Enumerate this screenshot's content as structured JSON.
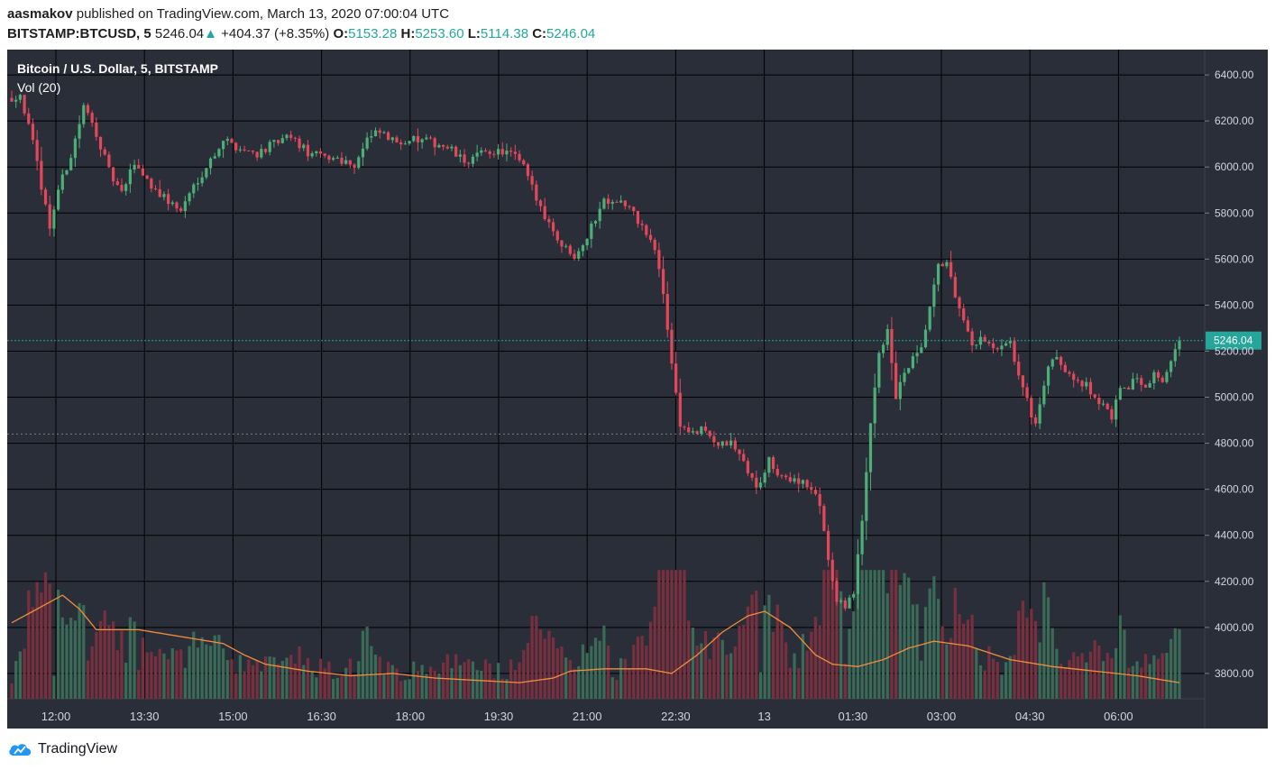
{
  "header": {
    "author": "aasmakov",
    "published_text": " published on TradingView.com, March 13, 2020 07:00:04 UTC",
    "symbol_label": "BITSTAMP:BTCUSD, 5",
    "last": "5246.04",
    "change": "+404.37 (+8.35%)",
    "o_label": "O:",
    "o_value": "5153.28",
    "h_label": "H:",
    "h_value": "5253.60",
    "l_label": "L:",
    "l_value": "5114.38",
    "c_label": "C:",
    "c_value": "5246.04"
  },
  "chart": {
    "legend_title": "Bitcoin / U.S. Dollar, 5, BITSTAMP",
    "legend_vol": "Vol (20)",
    "price_tag": "5246.04"
  },
  "footer": {
    "brand": "TradingView"
  },
  "colors": {
    "background": "#2a2e39",
    "grid": "#000000",
    "up": "#4caf77",
    "down": "#e5475a",
    "vol_up": "#3a6b56",
    "vol_down": "#7a2f3e",
    "ma": "#f28d3c",
    "accent": "#26a69a"
  },
  "chart_data": {
    "type": "candlestick",
    "title": "Bitcoin / U.S. Dollar, 5, BITSTAMP",
    "x_tick_labels": [
      "12:00",
      "13:30",
      "15:00",
      "16:30",
      "18:00",
      "19:30",
      "21:00",
      "22:30",
      "13",
      "01:30",
      "03:00",
      "04:30",
      "06:00"
    ],
    "y_tick_labels": [
      "6400.00",
      "6200.00",
      "6000.00",
      "5800.00",
      "5600.00",
      "5400.00",
      "5200.00",
      "5000.00",
      "4800.00",
      "4600.00",
      "4400.00",
      "4200.00",
      "4000.00",
      "3800.00"
    ],
    "ylim": [
      3690,
      6510
    ],
    "last_price": 5246.04,
    "secondary_line": 4840,
    "price_path": [
      [
        0,
        6300
      ],
      [
        2,
        6320
      ],
      [
        5,
        6100
      ],
      [
        9,
        5740
      ],
      [
        11,
        5900
      ],
      [
        14,
        6050
      ],
      [
        17,
        6260
      ],
      [
        20,
        6150
      ],
      [
        23,
        5980
      ],
      [
        26,
        5880
      ],
      [
        29,
        6020
      ],
      [
        33,
        5920
      ],
      [
        37,
        5850
      ],
      [
        40,
        5810
      ],
      [
        43,
        5920
      ],
      [
        47,
        6030
      ],
      [
        50,
        6120
      ],
      [
        54,
        6080
      ],
      [
        58,
        6060
      ],
      [
        62,
        6100
      ],
      [
        66,
        6130
      ],
      [
        70,
        6060
      ],
      [
        74,
        6040
      ],
      [
        77,
        6040
      ],
      [
        81,
        6010
      ],
      [
        84,
        6120
      ],
      [
        87,
        6150
      ],
      [
        90,
        6110
      ],
      [
        94,
        6120
      ],
      [
        98,
        6110
      ],
      [
        101,
        6100
      ],
      [
        104,
        6070
      ],
      [
        107,
        6020
      ],
      [
        110,
        6050
      ],
      [
        114,
        6070
      ],
      [
        118,
        6060
      ],
      [
        121,
        6000
      ],
      [
        124,
        5860
      ],
      [
        127,
        5760
      ],
      [
        130,
        5660
      ],
      [
        133,
        5620
      ],
      [
        136,
        5700
      ],
      [
        140,
        5860
      ],
      [
        143,
        5860
      ],
      [
        146,
        5820
      ],
      [
        149,
        5740
      ],
      [
        152,
        5640
      ],
      [
        154,
        5450
      ],
      [
        156,
        5150
      ],
      [
        158,
        4880
      ],
      [
        161,
        4840
      ],
      [
        164,
        4860
      ],
      [
        167,
        4790
      ],
      [
        170,
        4800
      ],
      [
        173,
        4720
      ],
      [
        176,
        4600
      ],
      [
        179,
        4720
      ],
      [
        182,
        4640
      ],
      [
        185,
        4650
      ],
      [
        188,
        4620
      ],
      [
        191,
        4540
      ],
      [
        193,
        4300
      ],
      [
        195,
        4100
      ],
      [
        197,
        4100
      ],
      [
        199,
        4150
      ],
      [
        201,
        4450
      ],
      [
        203,
        4900
      ],
      [
        205,
        5200
      ],
      [
        207,
        5280
      ],
      [
        209,
        5000
      ],
      [
        211,
        5100
      ],
      [
        213,
        5160
      ],
      [
        215,
        5200
      ],
      [
        217,
        5390
      ],
      [
        219,
        5560
      ],
      [
        221,
        5600
      ],
      [
        223,
        5420
      ],
      [
        225,
        5320
      ],
      [
        227,
        5220
      ],
      [
        229,
        5250
      ],
      [
        231,
        5220
      ],
      [
        233,
        5200
      ],
      [
        236,
        5230
      ],
      [
        238,
        5100
      ],
      [
        240,
        4980
      ],
      [
        242,
        4880
      ],
      [
        244,
        5060
      ],
      [
        246,
        5170
      ],
      [
        248,
        5140
      ],
      [
        250,
        5110
      ],
      [
        252,
        5080
      ],
      [
        254,
        5050
      ],
      [
        256,
        5000
      ],
      [
        258,
        4960
      ],
      [
        260,
        4920
      ],
      [
        262,
        5020
      ],
      [
        264,
        5050
      ],
      [
        266,
        5080
      ],
      [
        268,
        5060
      ],
      [
        270,
        5100
      ],
      [
        272,
        5080
      ],
      [
        274,
        5150
      ],
      [
        276,
        5246
      ]
    ],
    "volume_ma_path": [
      [
        0,
        4020
      ],
      [
        8,
        4100
      ],
      [
        12,
        4140
      ],
      [
        16,
        4080
      ],
      [
        20,
        3990
      ],
      [
        30,
        3990
      ],
      [
        40,
        3960
      ],
      [
        50,
        3930
      ],
      [
        55,
        3880
      ],
      [
        60,
        3840
      ],
      [
        70,
        3810
      ],
      [
        80,
        3790
      ],
      [
        90,
        3800
      ],
      [
        100,
        3780
      ],
      [
        110,
        3770
      ],
      [
        120,
        3760
      ],
      [
        128,
        3780
      ],
      [
        132,
        3810
      ],
      [
        140,
        3820
      ],
      [
        150,
        3820
      ],
      [
        156,
        3800
      ],
      [
        162,
        3880
      ],
      [
        168,
        3980
      ],
      [
        174,
        4050
      ],
      [
        178,
        4070
      ],
      [
        184,
        4000
      ],
      [
        190,
        3880
      ],
      [
        194,
        3840
      ],
      [
        200,
        3830
      ],
      [
        206,
        3860
      ],
      [
        212,
        3910
      ],
      [
        218,
        3940
      ],
      [
        226,
        3920
      ],
      [
        236,
        3860
      ],
      [
        246,
        3830
      ],
      [
        256,
        3810
      ],
      [
        266,
        3790
      ],
      [
        276,
        3760
      ]
    ]
  }
}
